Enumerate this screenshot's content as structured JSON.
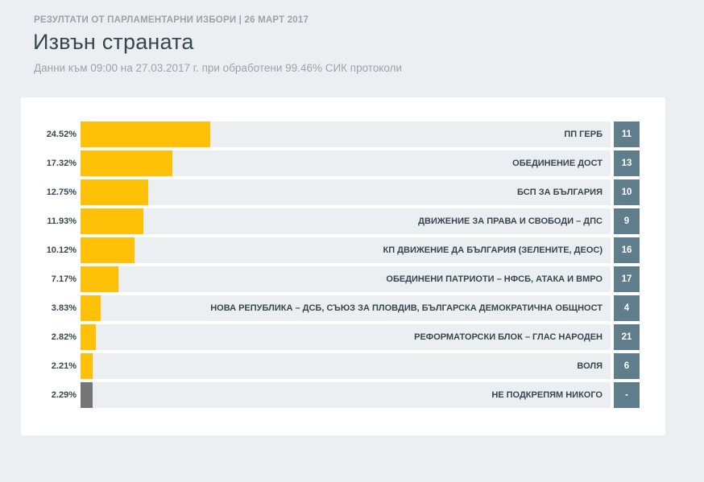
{
  "header": {
    "top_label": "РЕЗУЛТАТИ ОТ ПАРЛАМЕНТАРНИ ИЗБОРИ | 26 МАРТ 2017",
    "title": "Извън страната",
    "subtitle": "Данни към 09:00 на 27.03.2017 г. при обработени 99.46% СИК протоколи"
  },
  "colors": {
    "bar": "#ffc107",
    "bar_none": "#757575",
    "track": "#eceff1",
    "number_box": "#607d8b"
  },
  "chart_data": {
    "type": "bar",
    "orientation": "horizontal",
    "xlim": [
      0,
      100
    ],
    "rows": [
      {
        "percent_label": "24.52%",
        "value": 24.52,
        "name": "ПП ГЕРБ",
        "number": "11"
      },
      {
        "percent_label": "17.32%",
        "value": 17.32,
        "name": "ОБЕДИНЕНИЕ ДОСТ",
        "number": "13"
      },
      {
        "percent_label": "12.75%",
        "value": 12.75,
        "name": "БСП ЗА БЪЛГАРИЯ",
        "number": "10"
      },
      {
        "percent_label": "11.93%",
        "value": 11.93,
        "name": "ДВИЖЕНИЕ ЗА ПРАВА И СВОБОДИ – ДПС",
        "number": "9"
      },
      {
        "percent_label": "10.12%",
        "value": 10.12,
        "name": "КП ДВИЖЕНИЕ ДА БЪЛГАРИЯ (ЗЕЛЕНИТЕ, ДЕОС)",
        "number": "16"
      },
      {
        "percent_label": "7.17%",
        "value": 7.17,
        "name": "ОБЕДИНЕНИ ПАТРИОТИ – НФСБ, АТАКА И ВМРО",
        "number": "17"
      },
      {
        "percent_label": "3.83%",
        "value": 3.83,
        "name": "НОВА РЕПУБЛИКА – ДСБ, СЪЮЗ ЗА ПЛОВДИВ, БЪЛГАРСКА ДЕМОКРАТИЧНА ОБЩНОСТ",
        "number": "4"
      },
      {
        "percent_label": "2.82%",
        "value": 2.82,
        "name": "РЕФОРМАТОРСКИ БЛОК – ГЛАС НАРОДЕН",
        "number": "21"
      },
      {
        "percent_label": "2.21%",
        "value": 2.21,
        "name": "ВОЛЯ",
        "number": "6"
      },
      {
        "percent_label": "2.29%",
        "value": 2.29,
        "name": "НЕ ПОДКРЕПЯМ НИКОГО",
        "number": "-",
        "is_none_option": true
      }
    ]
  }
}
